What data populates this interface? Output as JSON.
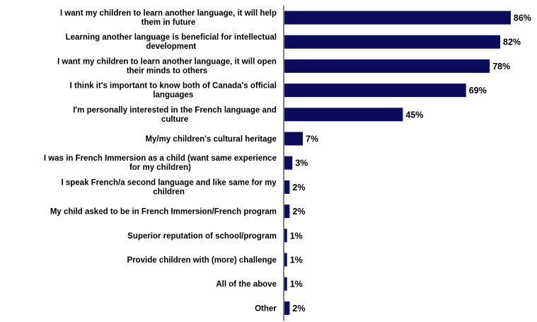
{
  "chart_data": {
    "type": "bar",
    "orientation": "horizontal",
    "categories": [
      [
        "I want my children to learn another language, it will help",
        "them in future"
      ],
      [
        "Learning another language is beneficial for intellectual",
        "development"
      ],
      [
        "I want my children to learn another language, it will open",
        "their minds to others"
      ],
      [
        "I think it's important to know both of Canada's official",
        "languages"
      ],
      [
        "I'm personally interested in the French language and",
        "culture"
      ],
      [
        "My/my children's cultural heritage"
      ],
      [
        "I was in French Immersion as a child (want same experience",
        "for my children)"
      ],
      [
        "I speak French/a second language and like same for my",
        "children"
      ],
      [
        "My child asked to be in French Immersion/French program"
      ],
      [
        "Superior reputation of school/program"
      ],
      [
        "Provide children with (more) challenge"
      ],
      [
        "All of the above"
      ],
      [
        "Other"
      ]
    ],
    "values": [
      86,
      82,
      78,
      69,
      45,
      7,
      3,
      2,
      2,
      1,
      1,
      1,
      2
    ],
    "value_labels": [
      "86%",
      "82%",
      "78%",
      "69%",
      "45%",
      "7%",
      "3%",
      "2%",
      "2%",
      "1%",
      "1%",
      "1%",
      "2%"
    ],
    "bar_color": "#0c0c5c",
    "xlim": [
      0,
      100
    ],
    "grid": false,
    "legend": "none"
  }
}
